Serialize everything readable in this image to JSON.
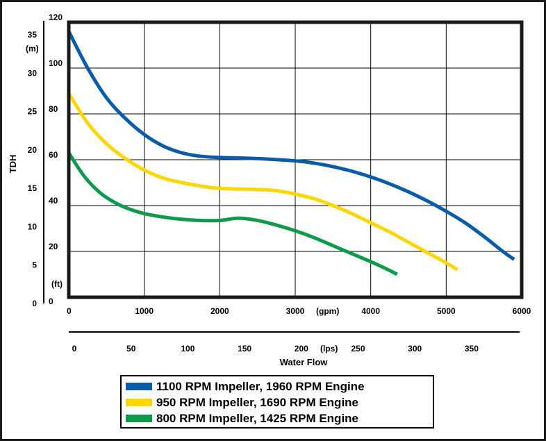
{
  "chart_data": {
    "type": "line",
    "ylabel": "TDH",
    "xlabel": "Water Flow",
    "x_units_primary": "(gpm)",
    "x_units_secondary": "(lps)",
    "y_units_primary": "(ft)",
    "y_units_secondary": "(m)",
    "xlim": [
      0,
      6000
    ],
    "ylim": [
      0,
      120
    ],
    "x_ticks": [
      0,
      1000,
      2000,
      3000,
      4000,
      5000,
      6000
    ],
    "y_ticks": [
      0,
      20,
      40,
      60,
      80,
      100,
      120
    ],
    "lps_ticks": [
      0,
      50,
      100,
      150,
      200,
      250,
      300,
      350
    ],
    "m_ticks": [
      0,
      5,
      10,
      15,
      20,
      25,
      30,
      35
    ],
    "grid": true,
    "legend_position": "bottom-center",
    "series": [
      {
        "name": "1100 RPM Impeller, 1960 RPM Engine",
        "color": "#0a5ca8",
        "x": [
          0,
          250,
          500,
          750,
          1000,
          1250,
          1500,
          1750,
          2000,
          2500,
          3000,
          3250,
          3500,
          3750,
          4000,
          4250,
          4500,
          4750,
          5000,
          5250,
          5500,
          5750,
          5900
        ],
        "y": [
          116,
          100,
          87,
          78,
          71,
          66,
          63,
          61.5,
          61,
          60.5,
          59.5,
          58.5,
          57,
          55,
          52.5,
          49.5,
          46,
          42,
          37.5,
          32.5,
          26.5,
          20,
          16.5
        ]
      },
      {
        "name": "950 RPM Impeller, 1690 RPM Engine",
        "color": "#ffd700",
        "x": [
          0,
          250,
          500,
          750,
          1000,
          1250,
          1500,
          1750,
          2000,
          2500,
          2750,
          3000,
          3250,
          3500,
          3750,
          4000,
          4250,
          4500,
          4750,
          5000,
          5150
        ],
        "y": [
          89,
          76,
          67,
          60.5,
          55.5,
          52,
          50,
          48.5,
          47.5,
          47,
          46.5,
          45,
          43,
          40,
          36.5,
          32.5,
          28.5,
          24,
          19.5,
          15,
          12
        ]
      },
      {
        "name": "800 RPM Impeller, 1425 RPM Engine",
        "color": "#0e9a4a",
        "x": [
          0,
          200,
          400,
          600,
          800,
          1000,
          1250,
          1500,
          1750,
          2000,
          2250,
          2500,
          2750,
          3000,
          3250,
          3500,
          3750,
          4000,
          4200,
          4350
        ],
        "y": [
          63,
          53,
          46,
          41.5,
          38.5,
          36.5,
          35,
          34,
          33.5,
          33.5,
          34.5,
          33.5,
          31.5,
          29,
          26,
          22.5,
          19,
          15.5,
          12.5,
          10
        ]
      }
    ]
  }
}
